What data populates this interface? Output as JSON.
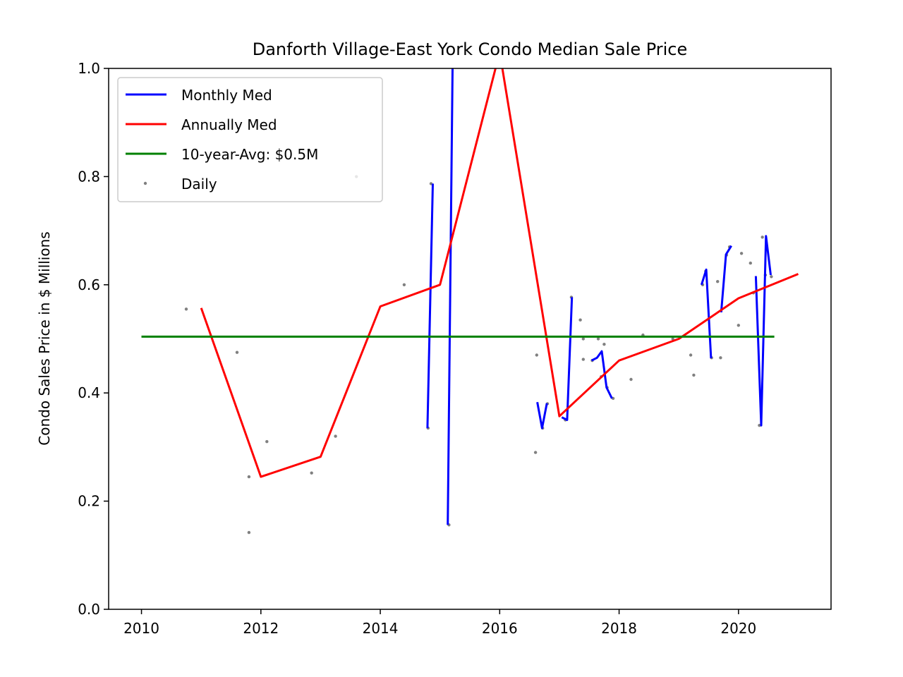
{
  "chart_data": {
    "type": "line",
    "title": "Danforth Village-East York Condo Median Sale Price",
    "xlabel": "",
    "ylabel": "Condo Sales Price in $ Millions",
    "xlim": [
      2009.45,
      2021.55
    ],
    "ylim": [
      0.0,
      1.0
    ],
    "x_ticks": [
      2010,
      2012,
      2014,
      2016,
      2018,
      2020
    ],
    "y_ticks": [
      0.0,
      0.2,
      0.4,
      0.6,
      0.8,
      1.0
    ],
    "y_tick_labels": [
      "0.0",
      "0.2",
      "0.4",
      "0.6",
      "0.8",
      "1.0"
    ],
    "grid": false,
    "legend_position": "top-left",
    "series": [
      {
        "name": "Monthly Med",
        "kind": "line",
        "color": "#0000ff",
        "segments": [
          [
            [
              2014.79,
              0.335
            ],
            [
              2014.88,
              0.787
            ]
          ],
          [
            [
              2015.13,
              0.156
            ],
            [
              2015.21,
              1.0
            ]
          ],
          [
            [
              2016.63,
              0.383
            ],
            [
              2016.71,
              0.335
            ],
            [
              2016.79,
              0.381
            ]
          ],
          [
            [
              2017.04,
              0.355
            ],
            [
              2017.13,
              0.35
            ],
            [
              2017.21,
              0.577
            ]
          ],
          [
            [
              2017.54,
              0.46
            ],
            [
              2017.63,
              0.465
            ],
            [
              2017.71,
              0.477
            ],
            [
              2017.79,
              0.41
            ],
            [
              2017.88,
              0.39
            ]
          ],
          [
            [
              2019.38,
              0.6
            ],
            [
              2019.46,
              0.628
            ],
            [
              2019.54,
              0.464
            ]
          ],
          [
            [
              2019.71,
              0.549
            ],
            [
              2019.79,
              0.656
            ],
            [
              2019.88,
              0.672
            ]
          ],
          [
            [
              2020.29,
              0.616
            ],
            [
              2020.38,
              0.34
            ],
            [
              2020.46,
              0.69
            ],
            [
              2020.54,
              0.618
            ]
          ]
        ]
      },
      {
        "name": "Annually Med",
        "kind": "line",
        "color": "#ff0000",
        "x": [
          2011,
          2012,
          2013,
          2014,
          2015,
          2016,
          2017,
          2018,
          2019,
          2020,
          2021
        ],
        "y": [
          0.557,
          0.245,
          0.282,
          0.56,
          0.6,
          1.03,
          0.357,
          0.46,
          0.5,
          0.575,
          0.62
        ]
      },
      {
        "name": "10-year-Avg: $0.5M",
        "kind": "line",
        "color": "#008000",
        "x": [
          2010.0,
          2020.6
        ],
        "y": [
          0.504,
          0.504
        ]
      },
      {
        "name": "Daily",
        "kind": "scatter",
        "color": "#808080",
        "x": [
          2010.75,
          2011.6,
          2011.8,
          2011.8,
          2012.1,
          2012.85,
          2013.25,
          2013.6,
          2014.4,
          2014.8,
          2014.85,
          2015.15,
          2016.6,
          2016.62,
          2016.72,
          2016.8,
          2017.1,
          2017.2,
          2017.35,
          2017.4,
          2017.4,
          2017.55,
          2017.65,
          2017.7,
          2017.75,
          2017.8,
          2017.9,
          2018.2,
          2018.4,
          2018.9,
          2019.2,
          2019.25,
          2019.4,
          2019.45,
          2019.55,
          2019.65,
          2019.7,
          2019.8,
          2019.85,
          2020.0,
          2020.05,
          2020.2,
          2020.25,
          2020.35,
          2020.4,
          2020.45,
          2020.55
        ],
        "y": [
          0.555,
          0.475,
          0.245,
          0.142,
          0.31,
          0.252,
          0.32,
          0.8,
          0.6,
          0.335,
          0.787,
          0.156,
          0.29,
          0.47,
          0.335,
          0.38,
          0.35,
          0.577,
          0.535,
          0.462,
          0.5,
          0.46,
          0.5,
          0.43,
          0.49,
          0.41,
          0.39,
          0.425,
          0.507,
          0.5,
          0.47,
          0.433,
          0.6,
          0.625,
          0.465,
          0.606,
          0.465,
          0.655,
          0.67,
          0.525,
          0.658,
          0.64,
          0.585,
          0.34,
          0.688,
          0.618,
          0.615
        ]
      }
    ]
  }
}
